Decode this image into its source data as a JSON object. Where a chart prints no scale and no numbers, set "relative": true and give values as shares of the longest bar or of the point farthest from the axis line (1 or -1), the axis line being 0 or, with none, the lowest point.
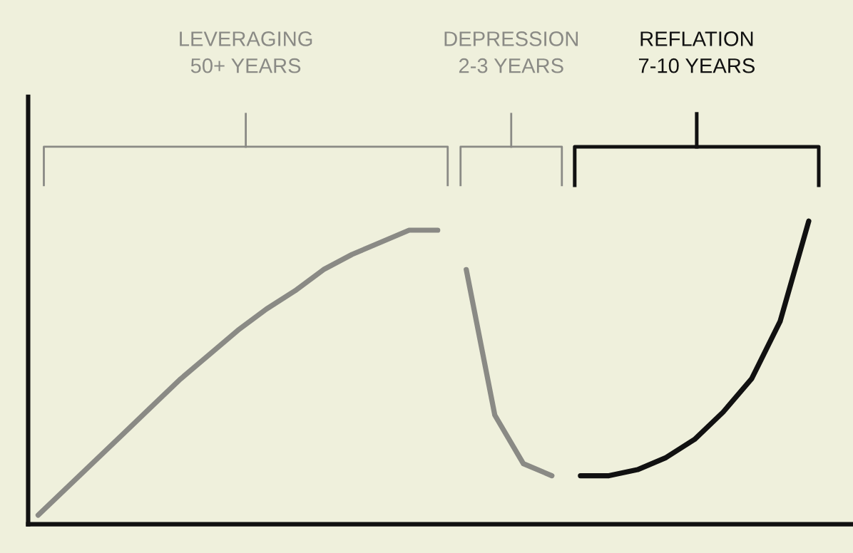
{
  "chart_data": {
    "type": "line",
    "relative": true,
    "categories": [
      null,
      null,
      null,
      null,
      null,
      null,
      null,
      null,
      null,
      null,
      null,
      null,
      null,
      null,
      null,
      null,
      null,
      null,
      null,
      null,
      null,
      null,
      null,
      null,
      null,
      null,
      null,
      null
    ],
    "series": [
      {
        "color": "#8a8a85",
        "values": [
          0.03,
          0.12,
          0.21,
          0.3,
          0.39,
          0.48,
          0.56,
          0.64,
          0.71,
          0.77,
          0.84,
          0.89,
          0.93,
          0.97,
          0.97,
          null,
          null,
          null,
          null,
          null,
          null,
          null,
          null,
          null,
          null,
          null,
          null,
          null
        ]
      },
      {
        "color": "#8a8a85",
        "values": [
          null,
          null,
          null,
          null,
          null,
          null,
          null,
          null,
          null,
          null,
          null,
          null,
          null,
          null,
          null,
          0.84,
          0.36,
          0.2,
          0.16,
          null,
          null,
          null,
          null,
          null,
          null,
          null,
          null,
          null
        ]
      },
      {
        "color": "#111111",
        "values": [
          null,
          null,
          null,
          null,
          null,
          null,
          null,
          null,
          null,
          null,
          null,
          null,
          null,
          null,
          null,
          null,
          null,
          null,
          null,
          0.16,
          0.16,
          0.18,
          0.22,
          0.28,
          0.37,
          0.48,
          0.67,
          1.0
        ]
      }
    ],
    "annotations": [
      "LEVERAGING\n50+ YEARS",
      "DEPRESSION\n2-3 YEARS",
      "REFLATION\n7-10 YEARS"
    ],
    "grid": false,
    "legend": false,
    "marker": "none",
    "line_style": "solid"
  }
}
